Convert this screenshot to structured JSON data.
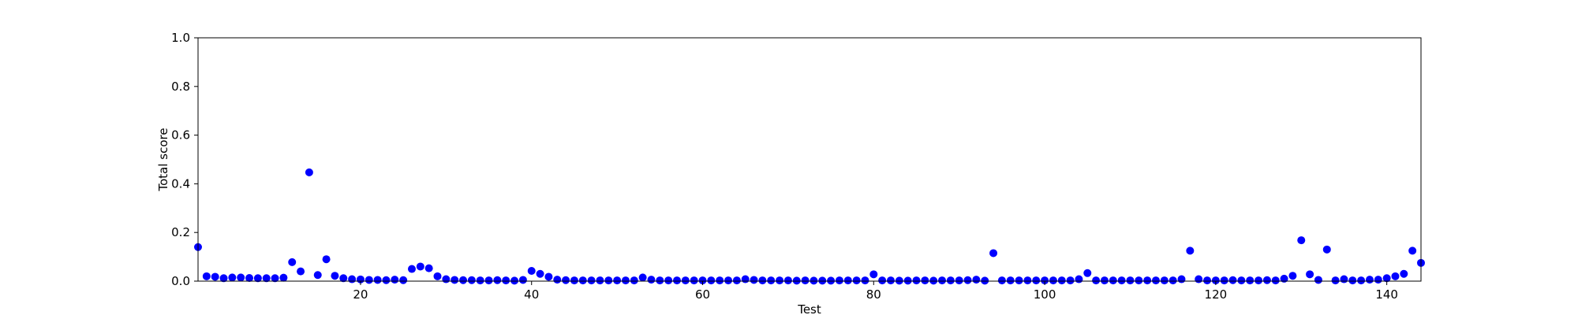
{
  "chart_data": {
    "type": "scatter",
    "title": "",
    "xlabel": "Test",
    "ylabel": "Total score",
    "xlim": [
      1,
      144
    ],
    "ylim": [
      0,
      1.0
    ],
    "x_ticks": [
      20,
      40,
      60,
      80,
      100,
      120,
      140
    ],
    "y_ticks": [
      "0.0",
      "0.2",
      "0.4",
      "0.6",
      "0.8",
      "1.0"
    ],
    "grid": false,
    "legend": "none",
    "marker_color": "#0000ff",
    "series": [
      {
        "x": [
          1,
          2,
          3,
          4,
          5,
          6,
          7,
          8,
          9,
          10,
          11,
          12,
          13,
          14,
          15,
          16,
          17,
          18,
          19,
          20,
          21,
          22,
          23,
          24,
          25,
          26,
          27,
          28,
          29,
          30,
          31,
          32,
          33,
          34,
          35,
          36,
          37,
          38,
          39,
          40,
          41,
          42,
          43,
          44,
          45,
          46,
          47,
          48,
          49,
          50,
          51,
          52,
          53,
          54,
          55,
          56,
          57,
          58,
          59,
          60,
          61,
          62,
          63,
          64,
          65,
          66,
          67,
          68,
          69,
          70,
          71,
          72,
          73,
          74,
          75,
          76,
          77,
          78,
          79,
          80,
          81,
          82,
          83,
          84,
          85,
          86,
          87,
          88,
          89,
          90,
          91,
          92,
          93,
          94,
          95,
          96,
          97,
          98,
          99,
          100,
          101,
          102,
          103,
          104,
          105,
          106,
          107,
          108,
          109,
          110,
          111,
          112,
          113,
          114,
          115,
          116,
          117,
          118,
          119,
          120,
          121,
          122,
          123,
          124,
          125,
          126,
          127,
          128,
          129,
          130,
          131,
          132,
          133,
          134,
          135,
          136,
          137,
          138,
          139,
          140,
          141,
          142,
          143,
          144
        ],
        "y": [
          0.14,
          0.02,
          0.018,
          0.012,
          0.015,
          0.015,
          0.013,
          0.012,
          0.012,
          0.012,
          0.014,
          0.078,
          0.04,
          0.447,
          0.025,
          0.09,
          0.022,
          0.012,
          0.008,
          0.007,
          0.005,
          0.005,
          0.004,
          0.006,
          0.004,
          0.05,
          0.06,
          0.053,
          0.02,
          0.008,
          0.005,
          0.004,
          0.004,
          0.003,
          0.003,
          0.004,
          0.003,
          0.002,
          0.005,
          0.042,
          0.03,
          0.018,
          0.006,
          0.004,
          0.003,
          0.003,
          0.003,
          0.003,
          0.003,
          0.003,
          0.003,
          0.003,
          0.015,
          0.006,
          0.003,
          0.003,
          0.003,
          0.003,
          0.003,
          0.003,
          0.003,
          0.003,
          0.003,
          0.003,
          0.008,
          0.005,
          0.003,
          0.003,
          0.003,
          0.003,
          0.002,
          0.003,
          0.002,
          0.002,
          0.002,
          0.003,
          0.003,
          0.003,
          0.003,
          0.028,
          0.003,
          0.003,
          0.002,
          0.002,
          0.003,
          0.003,
          0.002,
          0.003,
          0.003,
          0.003,
          0.004,
          0.006,
          0.002,
          0.115,
          0.003,
          0.003,
          0.003,
          0.003,
          0.003,
          0.003,
          0.003,
          0.003,
          0.003,
          0.008,
          0.033,
          0.003,
          0.003,
          0.003,
          0.003,
          0.003,
          0.003,
          0.003,
          0.003,
          0.003,
          0.003,
          0.008,
          0.125,
          0.008,
          0.003,
          0.003,
          0.003,
          0.004,
          0.003,
          0.003,
          0.003,
          0.004,
          0.003,
          0.01,
          0.022,
          0.168,
          0.028,
          0.005,
          0.13,
          0.003,
          0.008,
          0.003,
          0.003,
          0.006,
          0.006,
          0.012,
          0.02,
          0.03,
          0.125,
          0.075
        ]
      }
    ]
  }
}
